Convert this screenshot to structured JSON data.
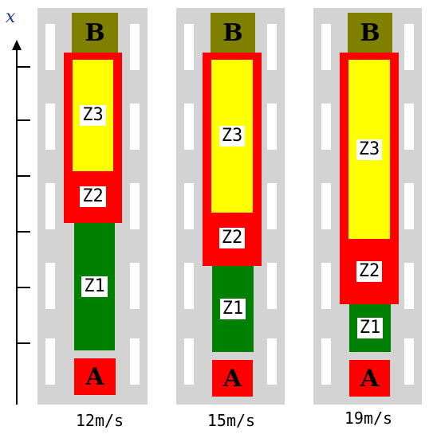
{
  "axis": {
    "label": "x"
  },
  "colors": {
    "track": "#d3d3d3",
    "zone_border": "#ff0000",
    "z1": "#008000",
    "z2": "#ff0000",
    "z3": "#ffff00",
    "point_a": "#ff0000",
    "point_b": "#808000"
  },
  "labels": {
    "z1": "Z1",
    "z2": "Z2",
    "z3": "Z3",
    "a": "A",
    "b": "B"
  },
  "scenarios": [
    {
      "speed": "12m/s"
    },
    {
      "speed": "15m/s"
    },
    {
      "speed": "19m/s"
    }
  ]
}
